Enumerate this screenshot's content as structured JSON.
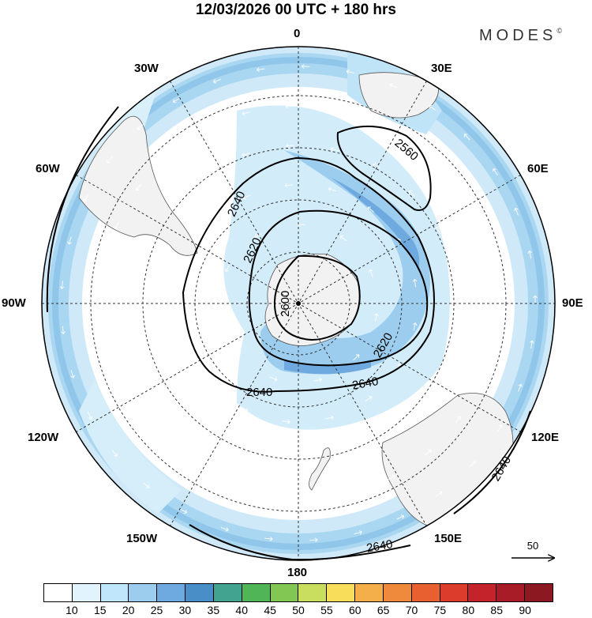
{
  "title": "12/03/2026  00 UTC  + 180 hrs",
  "brand": "MODES",
  "brand_mark": "©",
  "longitude_labels": [
    "0",
    "30E",
    "60E",
    "90E",
    "120E",
    "150E",
    "180",
    "150W",
    "120W",
    "90W",
    "60W",
    "30W"
  ],
  "contour_labels": [
    "2560",
    "2640",
    "2620",
    "2600",
    "2620",
    "2640",
    "2640",
    "2640",
    "2640"
  ],
  "reference_vector": "50",
  "colorbar": {
    "ticks": [
      "10",
      "15",
      "20",
      "25",
      "30",
      "35",
      "40",
      "45",
      "50",
      "55",
      "60",
      "65",
      "70",
      "75",
      "80",
      "85",
      "90"
    ],
    "colors": [
      "#ffffff",
      "#e1f3fd",
      "#bfe6fa",
      "#9ccdee",
      "#6eaadf",
      "#4a8ec8",
      "#43a391",
      "#4fb557",
      "#82c653",
      "#c9dd5e",
      "#f8dd5a",
      "#f4ae4a",
      "#ef8a3c",
      "#e8602f",
      "#dc3c2c",
      "#c4232c",
      "#a71c27",
      "#8c1921"
    ]
  },
  "colors": {
    "land": "#f2f2f2",
    "wind_light": "#d2ecfa",
    "wind_medium": "#a9d6f1",
    "wind_strong": "#86bde4"
  }
}
